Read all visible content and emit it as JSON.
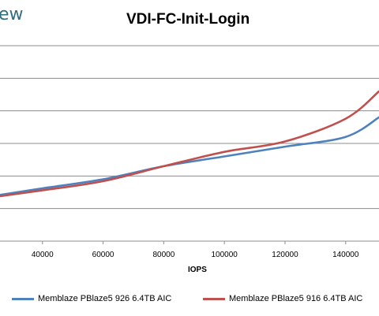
{
  "brand": {
    "text": "ew"
  },
  "chart_data": {
    "type": "line",
    "title": "VDI-FC-Init-Login",
    "xlabel": "IOPS",
    "ylabel": "",
    "x_ticks": [
      40000,
      60000,
      80000,
      100000,
      120000,
      140000
    ],
    "x_tick_labels": [
      "40000",
      "60000",
      "80000",
      "100000",
      "120000",
      "140000"
    ],
    "xlim": [
      26000,
      151000
    ],
    "ylim": [
      0,
      6
    ],
    "grid": true,
    "legend": "bottom",
    "series": [
      {
        "name": "Memblaze PBlaze5 926 6.4TB AIC",
        "color": "#4f81bd",
        "x": [
          26000,
          40000,
          60000,
          80000,
          100000,
          120000,
          140000,
          151000
        ],
        "y": [
          1.42,
          1.62,
          1.9,
          2.3,
          2.6,
          2.9,
          3.2,
          3.8
        ]
      },
      {
        "name": "Memblaze PBlaze5 916 6.4TB AIC",
        "color": "#c0504d",
        "x": [
          26000,
          40000,
          60000,
          80000,
          100000,
          120000,
          140000,
          151000
        ],
        "y": [
          1.38,
          1.56,
          1.84,
          2.3,
          2.74,
          3.06,
          3.76,
          4.6
        ]
      }
    ]
  }
}
